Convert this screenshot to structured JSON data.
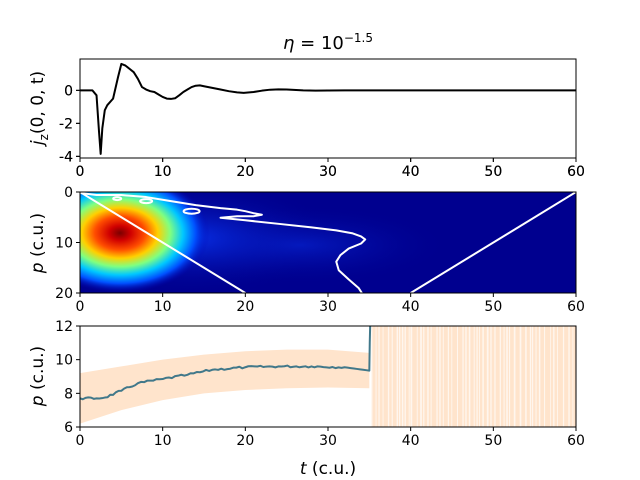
{
  "title": {
    "eta": "η",
    "eq": " = ",
    "base": "10",
    "exp": "−1.5"
  },
  "chart_data": [
    {
      "type": "line",
      "ylabel": {
        "main": "j",
        "sub": "z",
        "args": "(0, 0, t)"
      },
      "xlim": [
        0,
        60
      ],
      "ylim": [
        -4.1,
        1.9
      ],
      "xticks": [
        "0",
        "10",
        "20",
        "30",
        "40",
        "50",
        "60"
      ],
      "yticks": [
        {
          "v": 0,
          "label": "0"
        },
        {
          "v": -2,
          "label": "-2"
        },
        {
          "v": -4,
          "label": "-4"
        }
      ],
      "series": [
        {
          "color": "#000000",
          "x": [
            0,
            1.5,
            2.0,
            2.3,
            2.5,
            2.7,
            3.0,
            3.3,
            4.0,
            4.6,
            5.0,
            5.5,
            6.0,
            6.5,
            7.0,
            7.5,
            8.0,
            8.5,
            9.0,
            9.5,
            10.0,
            10.5,
            11.0,
            11.5,
            12.0,
            12.5,
            13.0,
            13.5,
            14.0,
            14.5,
            15.0,
            16.0,
            17.0,
            18.0,
            19.0,
            19.8,
            21.0,
            22.0,
            23.0,
            24.0,
            25.0,
            27.0,
            28.5,
            30.0,
            32.0,
            35.0,
            40.0,
            50.0,
            60.0
          ],
          "y": [
            0,
            0,
            -0.3,
            -2.5,
            -3.85,
            -2.3,
            -1.2,
            -0.9,
            -0.5,
            0.8,
            1.6,
            1.5,
            1.3,
            1.1,
            0.7,
            0.2,
            0.05,
            -0.05,
            -0.1,
            -0.25,
            -0.4,
            -0.5,
            -0.52,
            -0.48,
            -0.3,
            -0.1,
            0.05,
            0.2,
            0.28,
            0.3,
            0.25,
            0.15,
            0.05,
            -0.05,
            -0.12,
            -0.15,
            -0.1,
            -0.02,
            0.04,
            0.06,
            0.05,
            0.0,
            -0.02,
            -0.01,
            0.0,
            0.0,
            0.0,
            0.0,
            0.0
          ]
        }
      ]
    },
    {
      "type": "heatmap",
      "xlabel": "",
      "ylabel": {
        "main": "p",
        "unit": " (c.u.)"
      },
      "xlim": [
        0,
        60
      ],
      "ylim": [
        20,
        0
      ],
      "xticks": [
        "0",
        "10",
        "20",
        "30",
        "40",
        "50",
        "60"
      ],
      "yticks": [
        {
          "v": 0,
          "label": "0"
        },
        {
          "v": 10,
          "label": "10"
        },
        {
          "v": 20,
          "label": "20"
        }
      ],
      "colormap": "jet",
      "overlay_lines": [
        {
          "color": "#ffffff",
          "points": [
            [
              0,
              0
            ],
            [
              20,
              20
            ]
          ]
        },
        {
          "color": "#ffffff",
          "points": [
            [
              40,
              20
            ],
            [
              60,
              0
            ]
          ]
        }
      ],
      "contour": {
        "color": "#ffffff",
        "x": [
          0,
          2,
          5,
          8,
          11,
          14,
          17,
          19,
          20,
          21,
          22,
          21,
          19,
          17,
          20,
          24,
          28,
          31,
          33,
          34,
          34.5,
          34,
          32.5,
          31.5,
          31,
          31.3,
          32.5,
          33.7,
          34.1
        ],
        "y": [
          0.2,
          0.6,
          0.6,
          1.0,
          1.8,
          2.6,
          3.2,
          3.5,
          3.8,
          4.2,
          4.5,
          4.8,
          4.8,
          5.1,
          5.6,
          6.3,
          7.0,
          7.6,
          8.2,
          8.8,
          9.4,
          10.2,
          11.2,
          12.5,
          13.8,
          15.5,
          17.3,
          19.0,
          20.0
        ]
      }
    },
    {
      "type": "line",
      "xlabel": {
        "main": "t",
        "unit": " (c.u.)"
      },
      "ylabel": {
        "main": "p",
        "unit": " (c.u.)"
      },
      "xlim": [
        0,
        60
      ],
      "ylim": [
        6,
        12
      ],
      "xticks": [
        "0",
        "10",
        "20",
        "30",
        "40",
        "50",
        "60"
      ],
      "yticks": [
        {
          "v": 6,
          "label": "6"
        },
        {
          "v": 8,
          "label": "8"
        },
        {
          "v": 10,
          "label": "10"
        },
        {
          "v": 12,
          "label": "12"
        }
      ],
      "series": [
        {
          "color": "#41788a",
          "x": [
            0,
            2,
            3,
            5,
            7,
            10,
            13,
            16,
            20,
            24,
            28,
            32,
            35,
            35.05,
            35.1
          ],
          "y": [
            7.7,
            7.7,
            7.75,
            8.15,
            8.6,
            8.85,
            9.1,
            9.4,
            9.55,
            9.6,
            9.6,
            9.55,
            9.35,
            11.0,
            12.0
          ]
        }
      ],
      "band": {
        "color": "#ffe4cc",
        "x": [
          0,
          5,
          10,
          15,
          20,
          25,
          30,
          35
        ],
        "lower": [
          6.2,
          7.0,
          7.6,
          8.0,
          8.2,
          8.3,
          8.35,
          8.3
        ],
        "upper": [
          9.2,
          9.6,
          10.0,
          10.3,
          10.5,
          10.6,
          10.6,
          10.4
        ],
        "noise_from": 35.3,
        "noise_to": 60
      }
    }
  ]
}
